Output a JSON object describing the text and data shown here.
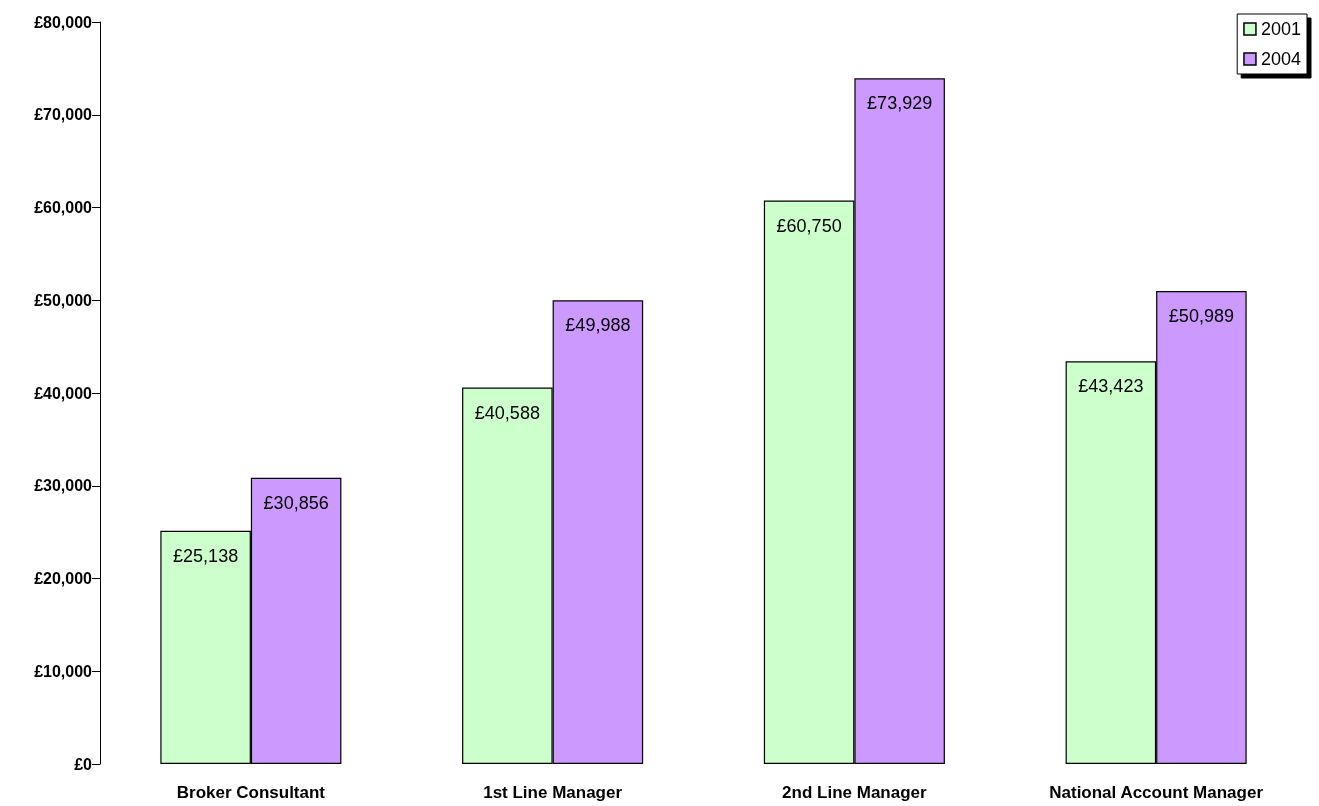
{
  "chart_data": {
    "type": "bar",
    "categories": [
      "Broker Consultant",
      "1st Line Manager",
      "2nd Line Manager",
      "National Account Manager"
    ],
    "series": [
      {
        "name": "2001",
        "color": "#ccffcc",
        "values": [
          25138,
          40588,
          60750,
          43423
        ],
        "value_labels": [
          "£25,138",
          "£40,588",
          "£60,750",
          "£43,423"
        ]
      },
      {
        "name": "2004",
        "color": "#cc99ff",
        "values": [
          30856,
          49988,
          73929,
          50989
        ],
        "value_labels": [
          "£30,856",
          "£49,988",
          "£73,929",
          "£50,989"
        ]
      }
    ],
    "ylim": [
      0,
      80000
    ],
    "yticks": [
      {
        "value": 0,
        "label": "£0"
      },
      {
        "value": 10000,
        "label": "£10,000"
      },
      {
        "value": 20000,
        "label": "£20,000"
      },
      {
        "value": 30000,
        "label": "£30,000"
      },
      {
        "value": 40000,
        "label": "£40,000"
      },
      {
        "value": 50000,
        "label": "£50,000"
      },
      {
        "value": 60000,
        "label": "£60,000"
      },
      {
        "value": 70000,
        "label": "£70,000"
      },
      {
        "value": 80000,
        "label": "£80,000"
      }
    ],
    "grid": false,
    "legend": "top right"
  }
}
